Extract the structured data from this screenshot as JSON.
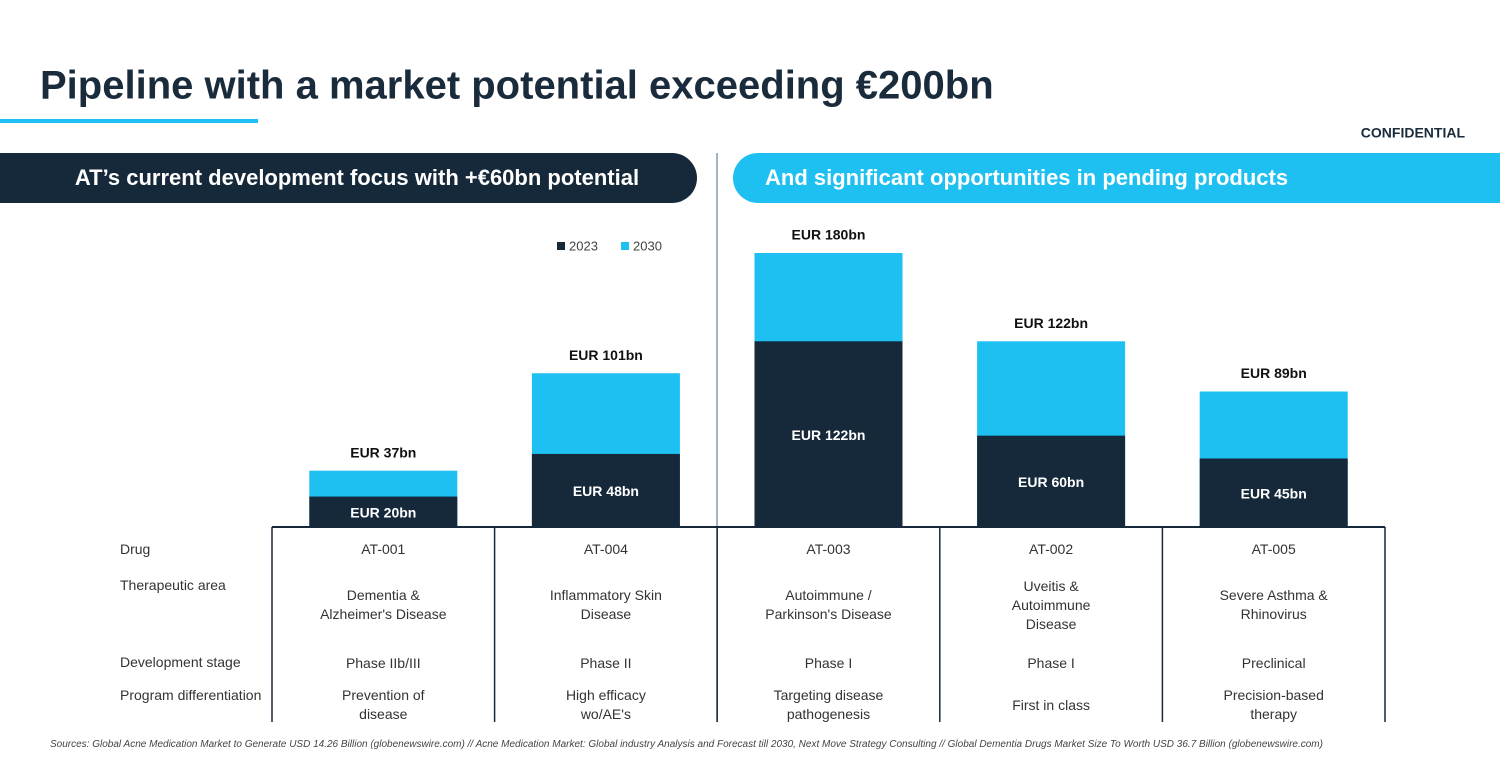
{
  "title": "Pipeline with a market potential exceeding €200bn",
  "confidential": "CONFIDENTIAL",
  "left_banner": "AT’s current development focus with +€60bn potential",
  "right_banner": "And significant opportunities in pending products",
  "chart_data": {
    "type": "bar",
    "categories": [
      "AT-001",
      "AT-004",
      "AT-003",
      "AT-002",
      "AT-005"
    ],
    "series": [
      {
        "name": "2023",
        "color": "#16293a",
        "values": [
          20,
          48,
          122,
          60,
          45
        ],
        "value_labels": [
          "EUR 20bn",
          "EUR 48bn",
          "EUR 122bn",
          "EUR 60bn",
          "EUR 45bn"
        ]
      },
      {
        "name": "2030",
        "color": "#1ec0f2",
        "values": [
          37,
          101,
          180,
          122,
          89
        ],
        "value_labels": [
          "EUR 37bn",
          "EUR 101bn",
          "EUR 180bn",
          "EUR 122bn",
          "EUR 89bn"
        ]
      }
    ]
  },
  "table": {
    "row_labels": [
      "Drug",
      "Therapeutic area",
      "Development stage",
      "Program differentiation"
    ],
    "rows": [
      [
        "Dementia & Alzheimer's Disease",
        "Inflammatory Skin Disease",
        "Autoimmune / Parkinson's Disease",
        "Uveitis & Autoimmune Disease",
        "Severe Asthma & Rhinovirus"
      ],
      [
        "Phase IIb/III",
        "Phase II",
        "Phase I",
        "Phase I",
        "Preclinical"
      ],
      [
        "Prevention of disease",
        "High efficacy wo/AE's",
        "Targeting disease pathogenesis",
        "First in class",
        "Precision-based therapy"
      ]
    ]
  },
  "sources": "Sources: Global Acne Medication Market to Generate USD 14.26 Billion (globenewswire.com) // Acne Medication Market: Global industry Analysis and Forecast till 2030, Next Move Strategy Consulting // Global Dementia Drugs Market Size To Worth USD 36.7 Billion (globenewswire.com)"
}
